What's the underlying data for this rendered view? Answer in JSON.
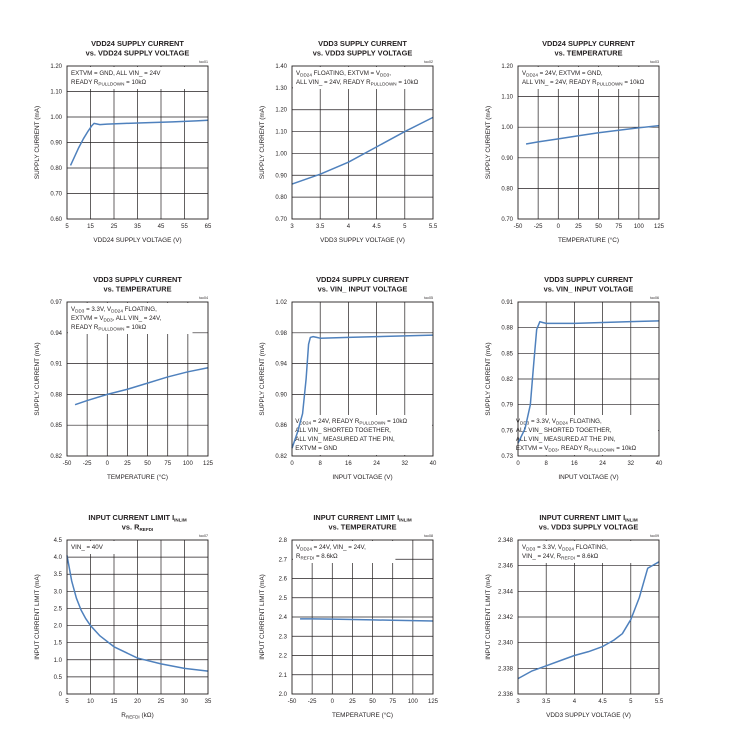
{
  "chart_data": [
    {
      "type": "line",
      "title": [
        "VDD24 SUPPLY CURRENT",
        "vs. VDD24 SUPPLY VOLTAGE"
      ],
      "toc": "toc01",
      "xlabel": [
        {
          "t": "VDD24 SUPPLY VOLTAGE (V)"
        }
      ],
      "ylabel": [
        {
          "t": "SUPPLY CURRENT (mA)"
        }
      ],
      "xlim": [
        5,
        65
      ],
      "ylim": [
        0.6,
        1.2
      ],
      "xticks": [
        5,
        15,
        25,
        35,
        45,
        55,
        65
      ],
      "xtick_labels": [
        "5",
        "15",
        "25",
        "35",
        "45",
        "55",
        "65"
      ],
      "yticks": [
        0.6,
        0.7,
        0.8,
        0.9,
        1.0,
        1.1,
        1.2
      ],
      "ytick_labels": [
        "0.60",
        "0.70",
        "0.80",
        "0.90",
        "1.00",
        "1.10",
        "1.20"
      ],
      "annotation": [
        [
          {
            "t": "EXTVM = GND, ALL VIN_ = 24V"
          }
        ],
        [
          {
            "t": "READY R"
          },
          {
            "t": "PULLDOWN",
            "sub": true
          },
          {
            "t": " = 10kΩ"
          }
        ]
      ],
      "series": [
        {
          "x": [
            6.5,
            8,
            10,
            12,
            14,
            15.5,
            16.5,
            17.5,
            19,
            22,
            30,
            40,
            50,
            60,
            65
          ],
          "y": [
            0.81,
            0.84,
            0.88,
            0.915,
            0.945,
            0.965,
            0.975,
            0.973,
            0.97,
            0.972,
            0.975,
            0.978,
            0.981,
            0.985,
            0.987
          ]
        }
      ]
    },
    {
      "type": "line",
      "title": [
        "VDD3 SUPPLY CURRENT",
        "vs. VDD3 SUPPLY VOLTAGE"
      ],
      "toc": "toc02",
      "xlabel": [
        {
          "t": "VDD3 SUPPLY VOLTAGE (V)"
        }
      ],
      "ylabel": [
        {
          "t": "SUPPLY CURRENT (mA)"
        }
      ],
      "xlim": [
        3,
        5.5
      ],
      "ylim": [
        0.7,
        1.4
      ],
      "xticks": [
        3,
        3.5,
        4,
        4.5,
        5,
        5.5
      ],
      "xtick_labels": [
        "3",
        "3.5",
        "4",
        "4.5",
        "5",
        "5.5"
      ],
      "yticks": [
        0.7,
        0.8,
        0.9,
        1.0,
        1.1,
        1.2,
        1.3,
        1.4
      ],
      "ytick_labels": [
        "0.70",
        "0.80",
        "0.90",
        "1.00",
        "1.10",
        "1.20",
        "1.30",
        "1.40"
      ],
      "annotation": [
        [
          {
            "t": "V"
          },
          {
            "t": "DD24",
            "sub": true
          },
          {
            "t": " FLOATING, EXTVM = V"
          },
          {
            "t": "DD3",
            "sub": true
          },
          {
            "t": ","
          }
        ],
        [
          {
            "t": "ALL VIN_ = 24V, READY R"
          },
          {
            "t": "PULLDOWN",
            "sub": true
          },
          {
            "t": " = 10kΩ"
          }
        ]
      ],
      "series": [
        {
          "x": [
            3,
            3.5,
            4,
            4.5,
            5,
            5.5
          ],
          "y": [
            0.86,
            0.905,
            0.96,
            1.03,
            1.1,
            1.165
          ]
        }
      ]
    },
    {
      "type": "line",
      "title": [
        "VDD24 SUPPLY CURRENT",
        "vs. TEMPERATURE"
      ],
      "toc": "toc03",
      "xlabel": [
        {
          "t": "TEMPERATURE (°C)"
        }
      ],
      "ylabel": [
        {
          "t": "SUPPLY CURRENT (mA)"
        }
      ],
      "xlim": [
        -50,
        125
      ],
      "ylim": [
        0.7,
        1.2
      ],
      "xticks": [
        -50,
        -25,
        0,
        25,
        50,
        75,
        100,
        125
      ],
      "xtick_labels": [
        "-50",
        "-25",
        "0",
        "25",
        "50",
        "75",
        "100",
        "125"
      ],
      "yticks": [
        0.7,
        0.8,
        0.9,
        1.0,
        1.1,
        1.2
      ],
      "ytick_labels": [
        "0.70",
        "0.80",
        "0.90",
        "1.00",
        "1.10",
        "1.20"
      ],
      "annotation": [
        [
          {
            "t": "V"
          },
          {
            "t": "DD24",
            "sub": true
          },
          {
            "t": " = 24V, EXTVM = GND,"
          }
        ],
        [
          {
            "t": "ALL VIN_ = 24V, READY R"
          },
          {
            "t": "PULLDOWN",
            "sub": true
          },
          {
            "t": " = 10kΩ"
          }
        ]
      ],
      "series": [
        {
          "x": [
            -40,
            -25,
            0,
            25,
            50,
            75,
            100,
            125
          ],
          "y": [
            0.945,
            0.952,
            0.962,
            0.972,
            0.982,
            0.99,
            0.998,
            1.005
          ]
        }
      ]
    },
    {
      "type": "line",
      "title": [
        "VDD3 SUPPLY CURRENT",
        "vs. TEMPERATURE"
      ],
      "toc": "toc04",
      "xlabel": [
        {
          "t": "TEMPERATURE (°C)"
        }
      ],
      "ylabel": [
        {
          "t": "SUPPLY CURRENT (mA)"
        }
      ],
      "xlim": [
        -50,
        125
      ],
      "ylim": [
        0.82,
        0.97
      ],
      "xticks": [
        -50,
        -25,
        0,
        25,
        50,
        75,
        100,
        125
      ],
      "xtick_labels": [
        "-50",
        "-25",
        "0",
        "25",
        "50",
        "75",
        "100",
        "125"
      ],
      "yticks": [
        0.82,
        0.85,
        0.88,
        0.91,
        0.94,
        0.97
      ],
      "ytick_labels": [
        "0.82",
        "0.85",
        "0.88",
        "0.91",
        "0.94",
        "0.97"
      ],
      "annotation": [
        [
          {
            "t": "V"
          },
          {
            "t": "DD3",
            "sub": true
          },
          {
            "t": " = 3.3V, V"
          },
          {
            "t": "DD24",
            "sub": true
          },
          {
            "t": " FLOATING,"
          }
        ],
        [
          {
            "t": "EXTVM = V"
          },
          {
            "t": "DD3",
            "sub": true
          },
          {
            "t": ", ALL VIN_ = 24V,"
          }
        ],
        [
          {
            "t": "READY R"
          },
          {
            "t": "PULLDOWN",
            "sub": true
          },
          {
            "t": " = 10kΩ"
          }
        ]
      ],
      "series": [
        {
          "x": [
            -40,
            -25,
            0,
            25,
            50,
            75,
            100,
            125
          ],
          "y": [
            0.87,
            0.874,
            0.88,
            0.885,
            0.891,
            0.897,
            0.902,
            0.906
          ]
        }
      ]
    },
    {
      "type": "line",
      "title": [
        "VDD24 SUPPLY CURRENT",
        "vs. VIN_ INPUT VOLTAGE"
      ],
      "toc": "toc05",
      "xlabel": [
        {
          "t": "INPUT VOLTAGE (V)"
        }
      ],
      "ylabel": [
        {
          "t": "SUPPLY CURRENT (mA)"
        }
      ],
      "xlim": [
        0,
        40
      ],
      "ylim": [
        0.82,
        1.02
      ],
      "xticks": [
        0,
        8,
        16,
        24,
        32,
        40
      ],
      "xtick_labels": [
        "0",
        "8",
        "16",
        "24",
        "32",
        "40"
      ],
      "yticks": [
        0.82,
        0.86,
        0.9,
        0.94,
        0.98,
        1.02
      ],
      "ytick_labels": [
        "0.82",
        "0.86",
        "0.90",
        "0.94",
        "0.98",
        "1.02"
      ],
      "annotation": [
        [
          {
            "t": "V"
          },
          {
            "t": "DD24",
            "sub": true
          },
          {
            "t": " = 24V, READY R"
          },
          {
            "t": "PULLDOWN",
            "sub": true
          },
          {
            "t": " = 10kΩ"
          }
        ],
        [
          {
            "t": "ALL VIN_ SHORTED TOGETHER,"
          }
        ],
        [
          {
            "t": "ALL VIN_ MEASURED AT THE PIN,"
          }
        ],
        [
          {
            "t": "EXTVM = GND"
          }
        ]
      ],
      "series": [
        {
          "x": [
            0,
            1.5,
            3,
            4,
            4.7,
            5.2,
            6,
            7,
            8,
            16,
            24,
            32,
            40
          ],
          "y": [
            0.83,
            0.85,
            0.875,
            0.92,
            0.965,
            0.974,
            0.975,
            0.974,
            0.973,
            0.974,
            0.975,
            0.976,
            0.977
          ]
        }
      ]
    },
    {
      "type": "line",
      "title": [
        "VDD3 SUPPLY CURRENT",
        "vs. VIN_ INPUT VOLTAGE"
      ],
      "toc": "toc06",
      "xlabel": [
        {
          "t": "INPUT VOLTAGE (V)"
        }
      ],
      "ylabel": [
        {
          "t": "SUPPLY CURRENT (mA)"
        }
      ],
      "xlim": [
        0,
        40
      ],
      "ylim": [
        0.73,
        0.91
      ],
      "xticks": [
        0,
        8,
        16,
        24,
        32,
        40
      ],
      "xtick_labels": [
        "0",
        "8",
        "16",
        "24",
        "32",
        "40"
      ],
      "yticks": [
        0.73,
        0.76,
        0.79,
        0.82,
        0.85,
        0.88,
        0.91
      ],
      "ytick_labels": [
        "0.73",
        "0.76",
        "0.79",
        "0.82",
        "0.85",
        "0.88",
        "0.91"
      ],
      "annotation": [
        [
          {
            "t": "V"
          },
          {
            "t": "DD3",
            "sub": true
          },
          {
            "t": " = 3.3V, V"
          },
          {
            "t": "DD24",
            "sub": true
          },
          {
            "t": " FLOATING,"
          }
        ],
        [
          {
            "t": "ALL VIN_ SHORTED TOGETHER,"
          }
        ],
        [
          {
            "t": "ALL VIN_ MEASURED AT THE PIN,"
          }
        ],
        [
          {
            "t": "EXTVM = V"
          },
          {
            "t": "DD3",
            "sub": true
          },
          {
            "t": ", READY R"
          },
          {
            "t": "PULLDOWN",
            "sub": true
          },
          {
            "t": " = 10kΩ"
          }
        ]
      ],
      "series": [
        {
          "x": [
            0,
            2,
            3.5,
            4.5,
            5.3,
            6.2,
            7,
            8,
            16,
            24,
            32,
            40
          ],
          "y": [
            0.745,
            0.762,
            0.79,
            0.84,
            0.878,
            0.887,
            0.886,
            0.885,
            0.885,
            0.886,
            0.887,
            0.888
          ]
        }
      ]
    },
    {
      "type": "line",
      "title": [
        [
          {
            "t": "INPUT CURRENT LIMIT I"
          },
          {
            "t": "INLIM",
            "sub": true
          }
        ],
        [
          {
            "t": "vs. R"
          },
          {
            "t": "REFDI",
            "sub": true
          }
        ]
      ],
      "toc": "toc07",
      "xlabel": [
        {
          "t": "R"
        },
        {
          "t": "REFDI",
          "sub": true
        },
        {
          "t": " (kΩ)"
        }
      ],
      "ylabel": [
        {
          "t": "INPUT CURRENT LIMIT (mA)"
        }
      ],
      "xlim": [
        5,
        35
      ],
      "ylim": [
        0,
        4.5
      ],
      "xticks": [
        5,
        10,
        15,
        20,
        25,
        30,
        35
      ],
      "xtick_labels": [
        "5",
        "10",
        "15",
        "20",
        "25",
        "30",
        "35"
      ],
      "yticks": [
        0,
        0.5,
        1.0,
        1.5,
        2.0,
        2.5,
        3.0,
        3.5,
        4.0,
        4.5
      ],
      "ytick_labels": [
        "0",
        "0.5",
        "1.0",
        "1.5",
        "2.0",
        "2.5",
        "3.0",
        "3.5",
        "4.0",
        "4.5"
      ],
      "annotation": [
        [
          {
            "t": "VIN_ = 40V"
          }
        ]
      ],
      "series": [
        {
          "x": [
            5,
            6,
            7,
            8,
            9,
            10,
            12,
            15,
            20,
            25,
            30,
            35
          ],
          "y": [
            4.05,
            3.3,
            2.8,
            2.45,
            2.2,
            2.0,
            1.7,
            1.38,
            1.05,
            0.88,
            0.75,
            0.67
          ]
        }
      ]
    },
    {
      "type": "line",
      "title": [
        [
          {
            "t": "INPUT CURRENT LIMIT I"
          },
          {
            "t": "INLIM",
            "sub": true
          }
        ],
        [
          {
            "t": "vs. TEMPERATURE"
          }
        ]
      ],
      "toc": "toc08",
      "xlabel": [
        {
          "t": "TEMPERATURE (°C)"
        }
      ],
      "ylabel": [
        {
          "t": "INPUT CURRENT LIMIT (mA)"
        }
      ],
      "xlim": [
        -50,
        125
      ],
      "ylim": [
        2.0,
        2.8
      ],
      "xticks": [
        -50,
        -25,
        0,
        25,
        50,
        75,
        100,
        125
      ],
      "xtick_labels": [
        "-50",
        "-25",
        "0",
        "25",
        "50",
        "75",
        "100",
        "125"
      ],
      "yticks": [
        2.0,
        2.1,
        2.2,
        2.3,
        2.4,
        2.5,
        2.6,
        2.7,
        2.8
      ],
      "ytick_labels": [
        "2.0",
        "2.1",
        "2.2",
        "2.3",
        "2.4",
        "2.5",
        "2.6",
        "2.7",
        "2.8"
      ],
      "annotation": [
        [
          {
            "t": "V"
          },
          {
            "t": "DD24",
            "sub": true
          },
          {
            "t": " = 24V, VIN_ = 24V,"
          }
        ],
        [
          {
            "t": "R"
          },
          {
            "t": "REFDI",
            "sub": true
          },
          {
            "t": " = 8.6kΩ"
          }
        ]
      ],
      "series": [
        {
          "x": [
            -40,
            -25,
            0,
            25,
            50,
            75,
            100,
            125
          ],
          "y": [
            2.39,
            2.39,
            2.389,
            2.387,
            2.385,
            2.383,
            2.381,
            2.379
          ]
        }
      ]
    },
    {
      "type": "line",
      "title": [
        [
          {
            "t": "INPUT CURRENT LIMIT I"
          },
          {
            "t": "INLIM",
            "sub": true
          }
        ],
        [
          {
            "t": "vs. VDD3 SUPPLY VOLTAGE"
          }
        ]
      ],
      "toc": "toc09",
      "xlabel": [
        {
          "t": "VDD3 SUPPLY VOLTAGE (V)"
        }
      ],
      "ylabel": [
        {
          "t": "INPUT CURRENT LIMIT (mA)"
        }
      ],
      "xlim": [
        3,
        5.5
      ],
      "ylim": [
        2.336,
        2.348
      ],
      "xticks": [
        3,
        3.5,
        4,
        4.5,
        5,
        5.5
      ],
      "xtick_labels": [
        "3",
        "3.5",
        "4",
        "4.5",
        "5",
        "5.5"
      ],
      "yticks": [
        2.336,
        2.338,
        2.34,
        2.342,
        2.344,
        2.346,
        2.348
      ],
      "ytick_labels": [
        "2.336",
        "2.338",
        "2.340",
        "2.342",
        "2.344",
        "2.346",
        "2.348"
      ],
      "annotation": [
        [
          {
            "t": "V"
          },
          {
            "t": "DD3",
            "sub": true
          },
          {
            "t": " = 3.3V, V"
          },
          {
            "t": "DD24",
            "sub": true
          },
          {
            "t": " FLOATING,"
          }
        ],
        [
          {
            "t": "VIN_ = 24V, R"
          },
          {
            "t": "REFDI",
            "sub": true
          },
          {
            "t": " = 8.6kΩ"
          }
        ]
      ],
      "series": [
        {
          "x": [
            3,
            3.25,
            3.5,
            3.75,
            4,
            4.25,
            4.5,
            4.7,
            4.85,
            5,
            5.15,
            5.3,
            5.5
          ],
          "y": [
            2.3372,
            2.3378,
            2.3382,
            2.3386,
            2.339,
            2.3393,
            2.3397,
            2.3402,
            2.3407,
            2.3418,
            2.3435,
            2.3458,
            2.3463
          ]
        }
      ]
    }
  ],
  "colors": {
    "line": "#4f81bd",
    "axis": "#231f20",
    "grid": "#231f20"
  }
}
